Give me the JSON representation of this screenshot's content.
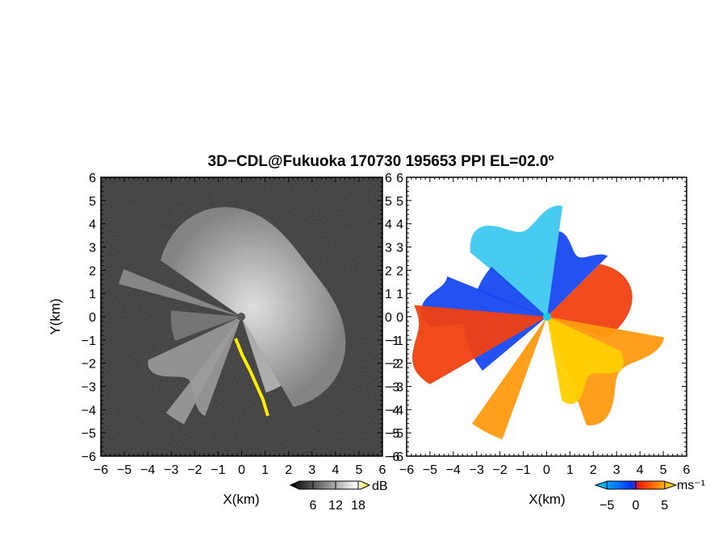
{
  "title": "3D−CDL@Fukuoka 170730 195653 PPI EL=02.0º",
  "chart_data": [
    {
      "type": "heatmap",
      "name": "left-panel",
      "quantity_unit": "dB",
      "xlabel": "X(km)",
      "ylabel": "Y(km)",
      "xlim": [
        -6,
        6
      ],
      "ylim": [
        -6,
        6
      ],
      "xticks": [
        "−6",
        "−5",
        "−4",
        "−3",
        "−2",
        "−1",
        "0",
        "1",
        "2",
        "3",
        "4",
        "5",
        "6"
      ],
      "yticks": [
        "6",
        "5",
        "4",
        "3",
        "2",
        "1",
        "0",
        "−1",
        "−2",
        "−3",
        "−4",
        "−5",
        "−6"
      ],
      "colorbar": {
        "ticks": [
          "6",
          "12",
          "18"
        ],
        "tick_values": [
          6,
          12,
          18
        ],
        "range": [
          0,
          21
        ],
        "unit": "dB",
        "colors": [
          "#000000",
          "#ffffff",
          "#ffee00"
        ]
      },
      "max_range_km": 4.6,
      "colormap": "gray",
      "fill_color": "#2e2e2e"
    },
    {
      "type": "heatmap",
      "name": "right-panel",
      "quantity_unit": "ms⁻¹",
      "xlabel": "X(km)",
      "ylabel": "",
      "xlim": [
        -6,
        6
      ],
      "ylim": [
        -6,
        6
      ],
      "xticks": [
        "−6",
        "−5",
        "−4",
        "−3",
        "−2",
        "−1",
        "0",
        "1",
        "2",
        "3",
        "4",
        "5",
        "6"
      ],
      "yticks": [
        "6",
        "5",
        "4",
        "3",
        "2",
        "1",
        "0",
        "−1",
        "−2",
        "−3",
        "−4",
        "−5",
        "−6"
      ],
      "colorbar": {
        "ticks": [
          "−5",
          "0",
          "5"
        ],
        "tick_values": [
          -5,
          0,
          5
        ],
        "range": [
          -7,
          7
        ],
        "unit": "ms⁻¹",
        "colors": [
          "#00d8ff",
          "#0030ff",
          "#ff2000",
          "#ffee00"
        ]
      },
      "radar_dot_color": "#1ec8e6",
      "sector_colors": {
        "cyan": "#3ec8f0",
        "blue": "#1848f0",
        "red": "#f04010",
        "orange": "#ff9a10",
        "yellow": "#ffd000"
      }
    }
  ]
}
